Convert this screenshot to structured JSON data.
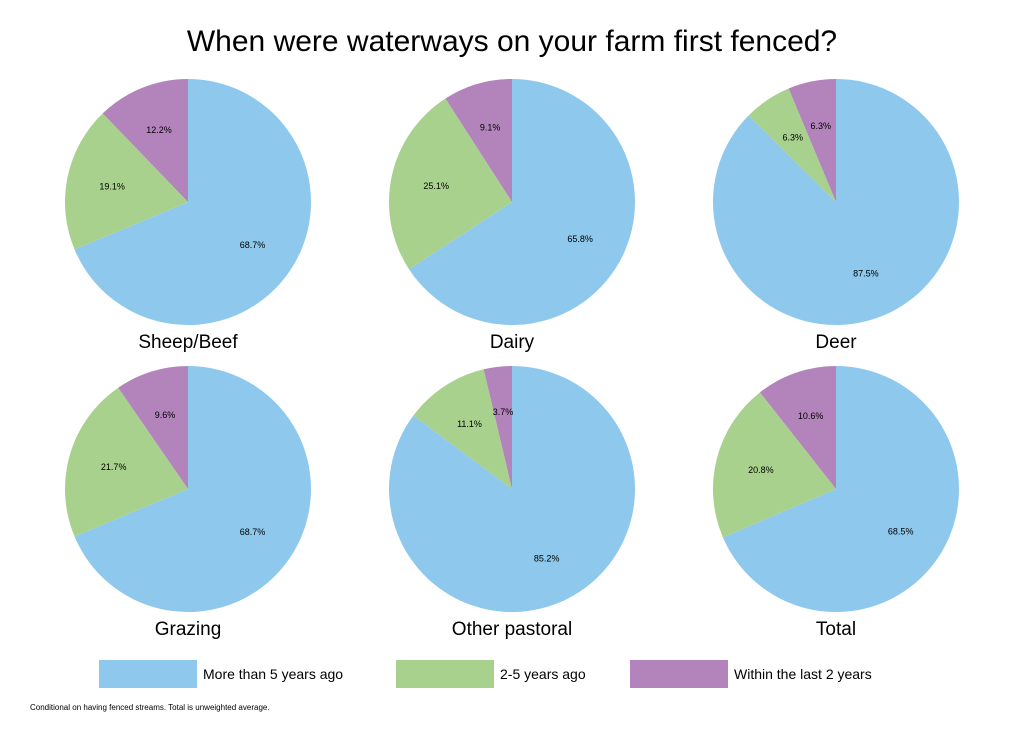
{
  "chart_data": {
    "type": "pie",
    "title": "When were waterways on your farm first fenced?",
    "categories": [
      "More than 5 years ago",
      "2-5 years ago",
      "Within the last 2 years"
    ],
    "colors": [
      "#8ec8ec",
      "#a9d18e",
      "#b384bb"
    ],
    "legend_position": "bottom",
    "footnote": "Conditional on having fenced streams. Total is unweighted average.",
    "series": [
      {
        "name": "Sheep/Beef",
        "values": [
          68.7,
          19.1,
          12.2
        ],
        "labels": [
          "68.7%",
          "19.1%",
          "12.2%"
        ]
      },
      {
        "name": "Dairy",
        "values": [
          65.8,
          25.1,
          9.1
        ],
        "labels": [
          "65.8%",
          "25.1%",
          "9.1%"
        ]
      },
      {
        "name": "Deer",
        "values": [
          87.5,
          6.3,
          6.3
        ],
        "labels": [
          "87.5%",
          "6.3%",
          "6.3%"
        ]
      },
      {
        "name": "Grazing",
        "values": [
          68.7,
          21.7,
          9.6
        ],
        "labels": [
          "68.7%",
          "21.7%",
          "9.6%"
        ]
      },
      {
        "name": "Other pastoral",
        "values": [
          85.2,
          11.1,
          3.7
        ],
        "labels": [
          "85.2%",
          "11.1%",
          "3.7%"
        ]
      },
      {
        "name": "Total",
        "values": [
          68.5,
          20.8,
          10.6
        ],
        "labels": [
          "68.5%",
          "20.8%",
          "10.6%"
        ]
      }
    ]
  }
}
